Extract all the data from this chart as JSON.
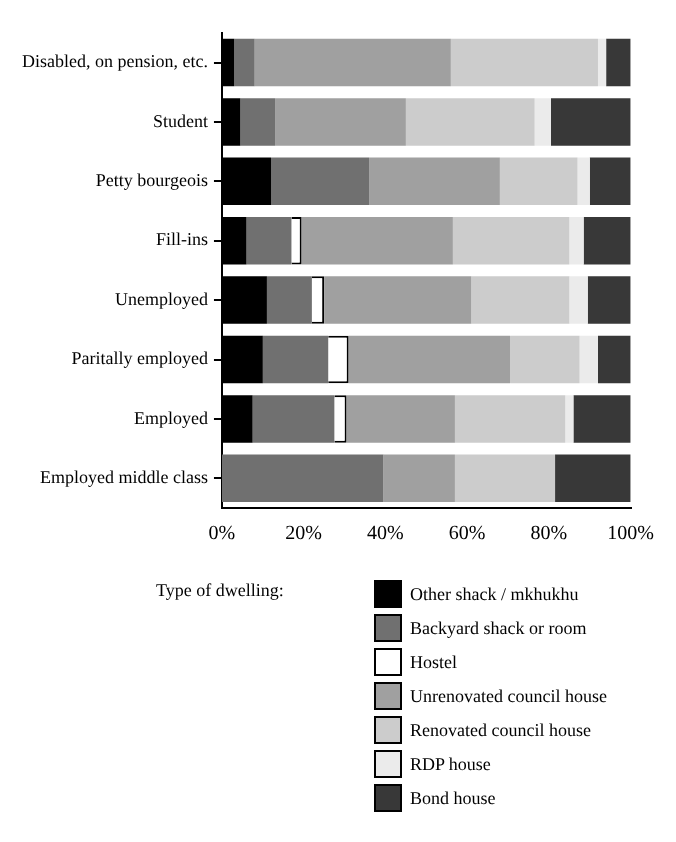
{
  "chart_data": {
    "type": "bar",
    "orientation": "horizontal",
    "stacked": true,
    "categories": [
      "Disabled, on pension, etc.",
      "Student",
      "Petty bourgeois",
      "Fill-ins",
      "Unemployed",
      "Paritally employed",
      "Employed",
      "Employed middle class"
    ],
    "series": [
      {
        "name": "Other shack / mkhukhu",
        "color": "#000000",
        "values": [
          3,
          4.5,
          12,
          6,
          11,
          10,
          7.5,
          0
        ]
      },
      {
        "name": "Backyard shack or room",
        "color": "#707070",
        "values": [
          5,
          8.5,
          24,
          11,
          11,
          16,
          20,
          39.5
        ]
      },
      {
        "name": "Hostel",
        "color": "#ffffff",
        "values": [
          0,
          0,
          0,
          2.5,
          3,
          5,
          3,
          0
        ]
      },
      {
        "name": "Unrenovated council house",
        "color": "#a0a0a0",
        "values": [
          48,
          32,
          32,
          37,
          36,
          39.5,
          26.5,
          17.5
        ]
      },
      {
        "name": "Renovated council house",
        "color": "#cccccc",
        "values": [
          36,
          31.5,
          19,
          28.5,
          24,
          17,
          27,
          24.5
        ]
      },
      {
        "name": "RDP house",
        "color": "#ebebeb",
        "values": [
          2,
          4,
          3,
          3.5,
          4.5,
          4.5,
          2,
          0
        ]
      },
      {
        "name": "Bond house",
        "color": "#383838",
        "values": [
          6,
          19.5,
          10,
          11.5,
          10.5,
          8,
          14,
          18.5
        ]
      }
    ],
    "xlim": [
      0,
      100
    ],
    "xticks": [
      {
        "value": 0,
        "label": "0%"
      },
      {
        "value": 20,
        "label": "20%"
      },
      {
        "value": 40,
        "label": "40%"
      },
      {
        "value": 60,
        "label": "60%"
      },
      {
        "value": 80,
        "label": "80%"
      },
      {
        "value": 100,
        "label": "100%"
      }
    ],
    "grid": false,
    "legend": "bottom",
    "legend_title": "Type of dwelling:"
  }
}
